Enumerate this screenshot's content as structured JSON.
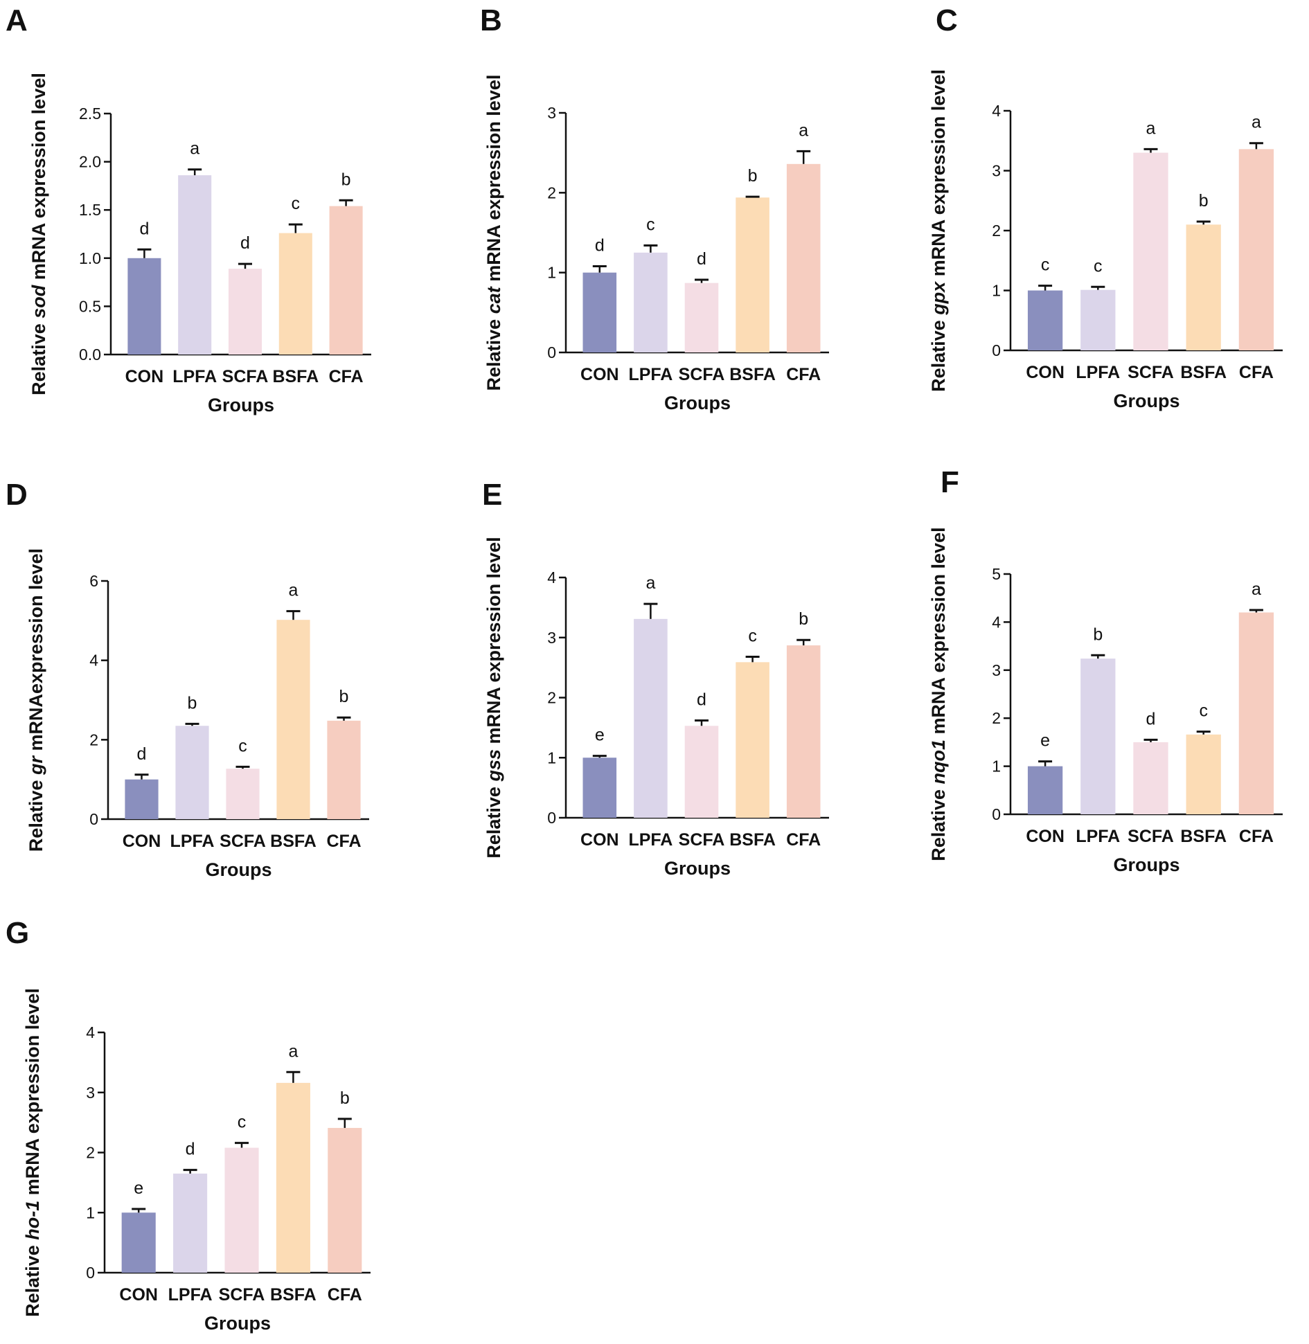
{
  "figure": {
    "x_label": "Groups"
  },
  "colors": [
    "#8a8fbe",
    "#dbd5ea",
    "#f4dde4",
    "#fcdcb5",
    "#f6cdc0"
  ],
  "chart_data": [
    {
      "type": "bar",
      "panel": "A",
      "title": "",
      "ylabel_prefix": "Relative ",
      "ylabel_gene": "sod",
      "ylabel_suffix": " mRNA expression level",
      "xlabel": "Groups",
      "categories": [
        "CON",
        "LPFA",
        "SCFA",
        "BSFA",
        "CFA"
      ],
      "values": [
        1.0,
        1.86,
        0.89,
        1.26,
        1.54
      ],
      "errors": [
        0.09,
        0.06,
        0.05,
        0.09,
        0.06
      ],
      "significance": [
        "d",
        "a",
        "d",
        "c",
        "b"
      ],
      "ylim": [
        0,
        2.5
      ],
      "yticks": [
        "0.0",
        "0.5",
        "1.0",
        "1.5",
        "2.0",
        "2.5"
      ]
    },
    {
      "type": "bar",
      "panel": "B",
      "title": "",
      "ylabel_prefix": "Relative ",
      "ylabel_gene": "cat",
      "ylabel_suffix": " mRNA expression level",
      "xlabel": "Groups",
      "categories": [
        "CON",
        "LPFA",
        "SCFA",
        "BSFA",
        "CFA"
      ],
      "values": [
        1.0,
        1.25,
        0.87,
        1.94,
        2.36
      ],
      "errors": [
        0.08,
        0.09,
        0.04,
        0.01,
        0.16
      ],
      "significance": [
        "d",
        "c",
        "d",
        "b",
        "a"
      ],
      "ylim": [
        0,
        3
      ],
      "yticks": [
        "0",
        "1",
        "2",
        "3"
      ]
    },
    {
      "type": "bar",
      "panel": "C",
      "title": "",
      "ylabel_prefix": "Relative ",
      "ylabel_gene": "gpx",
      "ylabel_suffix": " mRNA expression level",
      "xlabel": "Groups",
      "categories": [
        "CON",
        "LPFA",
        "SCFA",
        "BSFA",
        "CFA"
      ],
      "values": [
        1.0,
        1.01,
        3.3,
        2.1,
        3.36
      ],
      "errors": [
        0.08,
        0.05,
        0.06,
        0.05,
        0.1
      ],
      "significance": [
        "c",
        "c",
        "a",
        "b",
        "a"
      ],
      "ylim": [
        0,
        4
      ],
      "yticks": [
        "0",
        "1",
        "2",
        "3",
        "4"
      ]
    },
    {
      "type": "bar",
      "panel": "D",
      "title": "",
      "ylabel_prefix": "Relative ",
      "ylabel_gene": "gr",
      "ylabel_suffix": " mRNAexpression level",
      "xlabel": "Groups",
      "categories": [
        "CON",
        "LPFA",
        "SCFA",
        "BSFA",
        "CFA"
      ],
      "values": [
        1.0,
        2.35,
        1.27,
        5.02,
        2.48
      ],
      "errors": [
        0.12,
        0.05,
        0.05,
        0.22,
        0.08
      ],
      "significance": [
        "d",
        "b",
        "c",
        "a",
        "b"
      ],
      "ylim": [
        0,
        6
      ],
      "yticks": [
        "0",
        "2",
        "4",
        "6"
      ]
    },
    {
      "type": "bar",
      "panel": "E",
      "title": "",
      "ylabel_prefix": "Relative ",
      "ylabel_gene": "gss",
      "ylabel_suffix": " mRNA expression level",
      "xlabel": "Groups",
      "categories": [
        "CON",
        "LPFA",
        "SCFA",
        "BSFA",
        "CFA"
      ],
      "values": [
        1.0,
        3.31,
        1.53,
        2.59,
        2.87
      ],
      "errors": [
        0.03,
        0.25,
        0.09,
        0.09,
        0.09
      ],
      "significance": [
        "e",
        "a",
        "d",
        "c",
        "b"
      ],
      "ylim": [
        0,
        4
      ],
      "yticks": [
        "0",
        "1",
        "2",
        "3",
        "4"
      ]
    },
    {
      "type": "bar",
      "panel": "F",
      "title": "",
      "ylabel_prefix": "Relative ",
      "ylabel_gene": "nqo1",
      "ylabel_suffix": " mRNA expression level",
      "xlabel": "Groups",
      "categories": [
        "CON",
        "LPFA",
        "SCFA",
        "BSFA",
        "CFA"
      ],
      "values": [
        1.0,
        3.24,
        1.5,
        1.66,
        4.2
      ],
      "errors": [
        0.1,
        0.07,
        0.05,
        0.06,
        0.05
      ],
      "significance": [
        "e",
        "b",
        "d",
        "c",
        "a"
      ],
      "ylim": [
        0,
        5
      ],
      "yticks": [
        "0",
        "1",
        "2",
        "3",
        "4",
        "5"
      ]
    },
    {
      "type": "bar",
      "panel": "G",
      "title": "",
      "ylabel_prefix": "Relative ",
      "ylabel_gene": "ho-1",
      "ylabel_suffix": " mRNA expression level",
      "xlabel": "Groups",
      "categories": [
        "CON",
        "LPFA",
        "SCFA",
        "BSFA",
        "CFA"
      ],
      "values": [
        1.0,
        1.65,
        2.08,
        3.16,
        2.41
      ],
      "errors": [
        0.06,
        0.06,
        0.08,
        0.18,
        0.15
      ],
      "significance": [
        "e",
        "d",
        "c",
        "a",
        "b"
      ],
      "ylim": [
        0,
        4
      ],
      "yticks": [
        "0",
        "1",
        "2",
        "3",
        "4"
      ]
    }
  ]
}
